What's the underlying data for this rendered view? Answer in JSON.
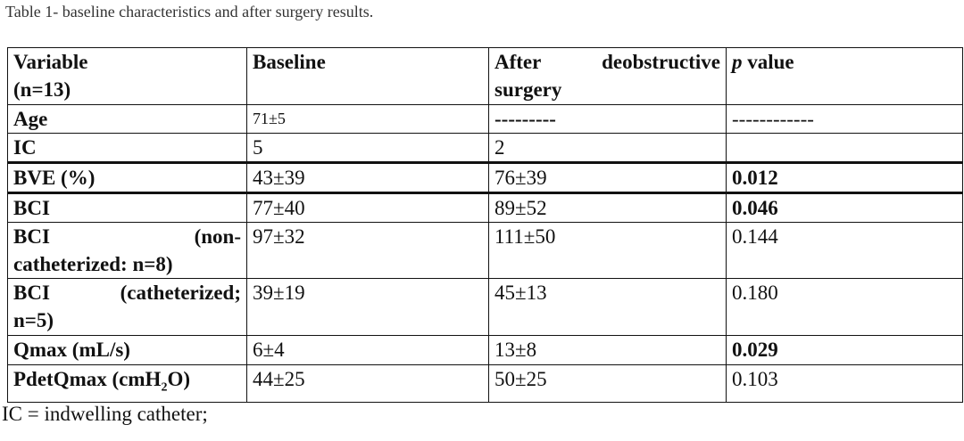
{
  "caption": "Table 1- baseline characteristics and after surgery results.",
  "table": {
    "headers": {
      "variable_line1": "Variable",
      "variable_line2": "(n=13)",
      "baseline": "Baseline",
      "after_line1": "After deobstructive",
      "after_line2": "surgery",
      "p_italic": "p",
      "p_rest": " value"
    },
    "rows": [
      {
        "variable": "Age",
        "baseline": "71±5",
        "after": "---------",
        "p": "------------"
      },
      {
        "variable": "IC",
        "baseline": "5",
        "after": "2",
        "p": ""
      },
      {
        "variable": "BVE (%)",
        "baseline": "43±39",
        "after": "76±39",
        "p": "0.012"
      },
      {
        "variable": "BCI",
        "baseline": "77±40",
        "after": "89±52",
        "p": "0.046"
      },
      {
        "variable_line1": "BCI (non-",
        "variable_line2": "catheterized: n=8)",
        "baseline": "97±32",
        "after": "111±50",
        "p": "0.144"
      },
      {
        "variable_line1": "BCI (catheterized;",
        "variable_line2": "n=5)",
        "baseline": "39±19",
        "after": "45±13",
        "p": "0.180"
      },
      {
        "variable": "Qmax (mL/s)",
        "baseline": "6±4",
        "after": "13±8",
        "p": "0.029"
      },
      {
        "variable_pre": "PdetQmax (cmH",
        "variable_sub": "2",
        "variable_post": "O)",
        "baseline": "44±25",
        "after": "50±25",
        "p": "0.103"
      }
    ]
  },
  "footnote": "IC = indwelling catheter;"
}
